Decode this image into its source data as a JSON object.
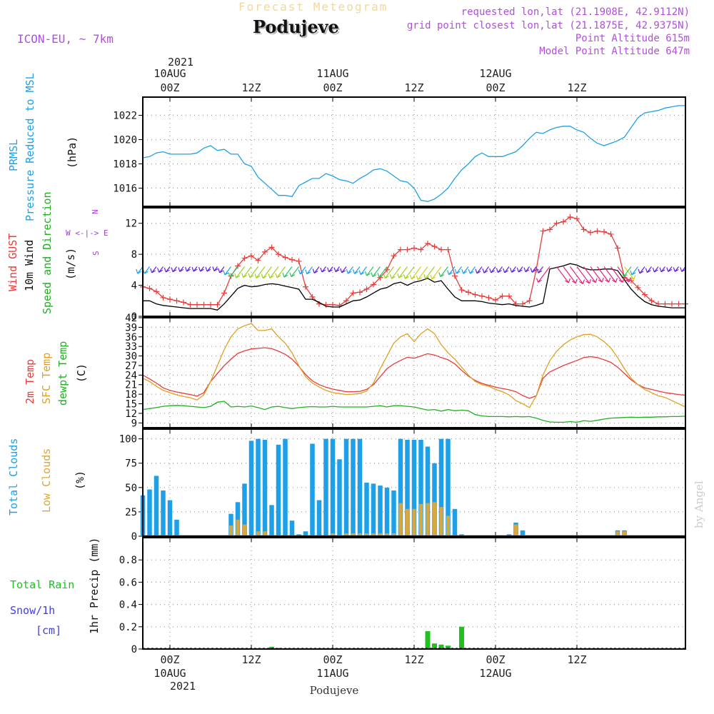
{
  "header": {
    "forecast_title": "Forecast Meteogram",
    "location": "Podujeve",
    "model": "ICON-EU, ~ 7km",
    "requested": "requested lon,lat (21.1908E, 42.9112N)",
    "gridpoint": "grid point closest lon,lat (21.1875E, 42.9375N)",
    "point_alt": "Point Altitude 615m",
    "model_alt": "Model Point Altitude 647m"
  },
  "axis_top": {
    "year": "2021",
    "labels": [
      "10AUG 00Z",
      "12Z",
      "11AUG 00Z",
      "12Z",
      "12AUG 00Z",
      "12Z"
    ]
  },
  "axis_bottom": {
    "labels": [
      "00Z",
      "12Z",
      "00Z",
      "12Z",
      "00Z",
      "12Z"
    ],
    "dates": [
      "10AUG",
      "11AUG",
      "12AUG"
    ],
    "year": "2021",
    "footer": "Podujeve"
  },
  "watermark": "by Angel",
  "colors": {
    "pressure": "#1ea0e8",
    "gust": "#e83c3c",
    "wind": "#000000",
    "temp2m": "#e83c3c",
    "sfc": "#e0a020",
    "dewpt": "#20b020",
    "clouds_total": "#1ea0e8",
    "clouds_low": "#d8a840",
    "rain": "#20c020",
    "purple": "#a040d0"
  },
  "panels": {
    "pressure": {
      "label1": "PRMSL",
      "label2": "Pressure Reduced to MSL",
      "unit": "(hPa)"
    },
    "wind": {
      "label_gust": "Wind GUST",
      "label_wind": "10m Wind",
      "label_dir": "Speed and Direction",
      "unit": "(m/s)",
      "compass_n": "N",
      "compass_s": "S",
      "compass_we": "W <-|-> E"
    },
    "temp": {
      "label_2m": "2m Temp",
      "label_sfc": "SFC Temp",
      "label_dew": "dewpt Temp",
      "unit": "(C)"
    },
    "clouds": {
      "label_total": "Total Clouds",
      "label_low": "Low Clouds",
      "unit": "(%)"
    },
    "precip": {
      "label_rain": "Total  Rain",
      "label_snow": "Snow/1h",
      "label_cm": "[cm]",
      "unit": "1hr Precip (mm)"
    }
  },
  "chart_data": [
    {
      "type": "line",
      "title": "PRMSL Pressure Reduced to MSL",
      "ylabel": "(hPa)",
      "xlabel": "",
      "x_hours_from_0000Z_10AUG": [
        -4,
        -3,
        -2,
        -1,
        0,
        1,
        2,
        3,
        4,
        5,
        6,
        7,
        8,
        9,
        10,
        11,
        12,
        13,
        14,
        15,
        16,
        17,
        18,
        19,
        20,
        21,
        22,
        23,
        24,
        25,
        26,
        27,
        28,
        29,
        30,
        31,
        32,
        33,
        34,
        35,
        36,
        37,
        38,
        39,
        40,
        41,
        42,
        43,
        44,
        45,
        46,
        47,
        48,
        49,
        50,
        51,
        52,
        53,
        54,
        55,
        56,
        57,
        58,
        59,
        60,
        61,
        62,
        63,
        64,
        65,
        66,
        67,
        68,
        69,
        70,
        71,
        72,
        73,
        74,
        75,
        76
      ],
      "series": [
        {
          "name": "PRMSL",
          "values": [
            1018.5,
            1018.6,
            1018.9,
            1019.0,
            1018.8,
            1018.8,
            1018.8,
            1018.8,
            1018.9,
            1019.3,
            1019.5,
            1019.1,
            1019.2,
            1018.8,
            1018.8,
            1018.0,
            1017.8,
            1016.9,
            1016.4,
            1015.9,
            1015.4,
            1015.4,
            1015.3,
            1016.2,
            1016.5,
            1016.8,
            1016.8,
            1017.2,
            1017.0,
            1016.7,
            1016.6,
            1016.4,
            1016.8,
            1017.1,
            1017.5,
            1017.6,
            1017.4,
            1017.0,
            1016.6,
            1016.5,
            1016.0,
            1015.0,
            1014.9,
            1015.1,
            1015.5,
            1016.0,
            1016.8,
            1017.5,
            1018.0,
            1018.6,
            1018.9,
            1018.6,
            1018.6,
            1018.6,
            1018.8,
            1019.0,
            1019.5,
            1020.1,
            1020.6,
            1020.5,
            1020.8,
            1021.0,
            1021.1,
            1021.1,
            1020.8,
            1020.6,
            1020.1,
            1019.7,
            1019.5,
            1019.7,
            1019.9,
            1020.2,
            1021.0,
            1021.8,
            1022.2,
            1022.3,
            1022.4,
            1022.6,
            1022.7,
            1022.8,
            1022.8
          ]
        }
      ],
      "ylim": [
        1014.5,
        1023.5
      ],
      "yticks": [
        1016,
        1018,
        1020,
        1022
      ]
    },
    {
      "type": "line",
      "title": "Wind GUST / 10m Wind Speed and Direction",
      "ylabel": "(m/s)",
      "x_hours_from_0000Z_10AUG": [
        -4,
        -3,
        -2,
        -1,
        0,
        1,
        2,
        3,
        4,
        5,
        6,
        7,
        8,
        9,
        10,
        11,
        12,
        13,
        14,
        15,
        16,
        17,
        18,
        19,
        20,
        21,
        22,
        23,
        24,
        25,
        26,
        27,
        28,
        29,
        30,
        31,
        32,
        33,
        34,
        35,
        36,
        37,
        38,
        39,
        40,
        41,
        42,
        43,
        44,
        45,
        46,
        47,
        48,
        49,
        50,
        51,
        52,
        53,
        54,
        55,
        56,
        57,
        58,
        59,
        60,
        61,
        62,
        63,
        64,
        65,
        66,
        67,
        68,
        69,
        70,
        71,
        72,
        73,
        74,
        75,
        76
      ],
      "series": [
        {
          "name": "Wind GUST",
          "values": [
            3.8,
            3.6,
            3.2,
            2.4,
            2.2,
            2.0,
            1.8,
            1.5,
            1.5,
            1.5,
            1.5,
            1.5,
            3.0,
            5.2,
            6.5,
            7.5,
            7.8,
            7.2,
            8.3,
            8.9,
            8.0,
            7.6,
            7.3,
            7.1,
            3.8,
            2.5,
            1.6,
            1.5,
            1.5,
            1.4,
            2.0,
            3.0,
            3.1,
            3.5,
            4.1,
            5.0,
            6.0,
            7.8,
            8.6,
            8.6,
            8.8,
            8.6,
            9.4,
            9.0,
            8.6,
            8.6,
            5.2,
            3.4,
            3.1,
            2.8,
            2.6,
            2.4,
            2.1,
            2.6,
            2.6,
            1.6,
            1.6,
            2.0,
            6.0,
            11.0,
            11.2,
            12.0,
            12.2,
            12.8,
            12.6,
            11.2,
            10.8,
            11.0,
            10.9,
            10.6,
            8.8,
            5.0,
            4.6,
            3.7,
            2.8,
            2.0,
            1.6,
            1.6,
            1.6,
            1.6,
            1.6
          ]
        },
        {
          "name": "10m Wind",
          "values": [
            2.0,
            2.0,
            1.6,
            1.4,
            1.3,
            1.2,
            1.1,
            1.0,
            1.0,
            1.0,
            1.0,
            0.8,
            1.6,
            2.6,
            3.6,
            4.0,
            3.8,
            3.9,
            4.1,
            4.2,
            4.1,
            3.9,
            3.7,
            3.5,
            2.2,
            2.2,
            1.8,
            1.3,
            1.2,
            1.2,
            1.6,
            2.0,
            2.1,
            2.5,
            3.0,
            3.5,
            3.7,
            4.2,
            4.4,
            4.0,
            4.4,
            4.6,
            4.9,
            4.4,
            4.6,
            3.5,
            2.5,
            2.0,
            2.0,
            2.0,
            1.9,
            1.7,
            1.6,
            1.5,
            1.6,
            1.4,
            1.3,
            1.2,
            1.4,
            1.7,
            6.1,
            6.3,
            6.5,
            6.8,
            6.6,
            6.2,
            6.0,
            6.0,
            6.1,
            6.1,
            5.9,
            4.7,
            3.5,
            2.6,
            1.9,
            1.5,
            1.3,
            1.2,
            1.1,
            1.1,
            1.1
          ]
        }
      ],
      "ylim": [
        0,
        14
      ],
      "yticks": [
        0,
        4,
        8,
        12
      ]
    },
    {
      "type": "line",
      "title": "2m Temp / SFC Temp / dewpt Temp",
      "ylabel": "(C)",
      "x_hours_from_0000Z_10AUG": [
        -4,
        -3,
        -2,
        -1,
        0,
        1,
        2,
        3,
        4,
        5,
        6,
        7,
        8,
        9,
        10,
        11,
        12,
        13,
        14,
        15,
        16,
        17,
        18,
        19,
        20,
        21,
        22,
        23,
        24,
        25,
        26,
        27,
        28,
        29,
        30,
        31,
        32,
        33,
        34,
        35,
        36,
        37,
        38,
        39,
        40,
        41,
        42,
        43,
        44,
        45,
        46,
        47,
        48,
        49,
        50,
        51,
        52,
        53,
        54,
        55,
        56,
        57,
        58,
        59,
        60,
        61,
        62,
        63,
        64,
        65,
        66,
        67,
        68,
        69,
        70,
        71,
        72,
        73,
        74,
        75,
        76
      ],
      "series": [
        {
          "name": "2m Temp",
          "values": [
            24.0,
            22.8,
            21.5,
            20.0,
            19.2,
            18.7,
            18.3,
            17.9,
            17.4,
            18.5,
            22.0,
            24.5,
            27.0,
            29.0,
            30.8,
            31.6,
            32.2,
            32.4,
            32.6,
            32.3,
            31.5,
            30.5,
            29.0,
            26.8,
            24.2,
            22.2,
            21.0,
            20.2,
            19.6,
            19.2,
            18.8,
            18.8,
            18.9,
            19.5,
            21.0,
            23.5,
            26.0,
            27.5,
            28.6,
            29.6,
            29.3,
            30.0,
            30.7,
            30.3,
            29.5,
            28.8,
            27.5,
            25.5,
            23.7,
            22.3,
            21.4,
            20.8,
            20.2,
            19.8,
            19.4,
            18.8,
            17.6,
            16.7,
            17.5,
            23.0,
            25.0,
            26.0,
            27.0,
            27.8,
            28.6,
            29.5,
            29.8,
            29.5,
            28.8,
            28.0,
            26.5,
            24.5,
            22.5,
            21.0,
            20.0,
            19.5,
            19.0,
            18.5,
            18.2,
            17.9,
            17.7
          ]
        },
        {
          "name": "SFC Temp",
          "values": [
            23.0,
            22.0,
            20.5,
            19.2,
            18.5,
            17.8,
            17.3,
            16.9,
            16.2,
            17.8,
            22.0,
            27.0,
            32.0,
            36.0,
            38.5,
            39.5,
            40.2,
            38.0,
            38.0,
            38.5,
            36.0,
            34.0,
            31.0,
            27.0,
            23.5,
            21.5,
            20.3,
            19.2,
            18.5,
            18.2,
            17.9,
            18.0,
            18.2,
            19.0,
            21.5,
            26.0,
            30.0,
            34.0,
            36.0,
            37.0,
            34.5,
            37.0,
            38.5,
            37.0,
            33.5,
            31.0,
            29.0,
            26.5,
            24.0,
            22.0,
            21.0,
            20.5,
            19.5,
            18.8,
            17.8,
            16.0,
            15.0,
            13.8,
            17.5,
            24.0,
            28.5,
            31.5,
            33.5,
            35.0,
            36.0,
            36.7,
            36.8,
            36.0,
            34.5,
            32.5,
            29.5,
            26.0,
            23.0,
            21.0,
            19.5,
            18.5,
            17.5,
            17.0,
            16.0,
            15.0,
            14.0
          ]
        },
        {
          "name": "dewpt Temp",
          "values": [
            13.2,
            13.5,
            13.8,
            14.2,
            14.4,
            14.5,
            14.4,
            14.2,
            14.0,
            13.8,
            14.2,
            15.5,
            15.8,
            14.0,
            14.2,
            14.0,
            14.3,
            13.8,
            13.2,
            14.0,
            14.2,
            13.8,
            13.5,
            13.8,
            14.0,
            14.1,
            14.0,
            14.0,
            14.2,
            14.0,
            14.0,
            14.0,
            14.0,
            14.0,
            14.2,
            14.4,
            14.0,
            14.4,
            14.4,
            14.2,
            14.0,
            13.5,
            13.0,
            13.2,
            12.7,
            13.2,
            12.8,
            13.0,
            12.8,
            11.6,
            11.2,
            11.0,
            11.0,
            11.0,
            10.9,
            11.0,
            10.9,
            11.0,
            10.5,
            9.8,
            9.3,
            9.2,
            9.2,
            9.4,
            9.2,
            9.7,
            9.5,
            9.8,
            10.2,
            10.5,
            10.6,
            10.7,
            10.8,
            10.7,
            10.8,
            10.8,
            10.9,
            10.9,
            11.0,
            11.0,
            11.1
          ]
        }
      ],
      "ylim": [
        7.5,
        42
      ],
      "yticks": [
        9,
        12,
        15,
        18,
        21,
        24,
        27,
        30,
        33,
        36,
        39,
        42
      ]
    },
    {
      "type": "bar",
      "title": "Total Clouds / Low Clouds",
      "ylabel": "(%)",
      "x_hours_from_0000Z_10AUG": [
        -4,
        -3,
        -2,
        -1,
        0,
        1,
        2,
        3,
        4,
        5,
        6,
        7,
        8,
        9,
        10,
        11,
        12,
        13,
        14,
        15,
        16,
        17,
        18,
        19,
        20,
        21,
        22,
        23,
        24,
        25,
        26,
        27,
        28,
        29,
        30,
        31,
        32,
        33,
        34,
        35,
        36,
        37,
        38,
        39,
        40,
        41,
        42,
        43,
        44,
        45,
        46,
        47,
        48,
        49,
        50,
        51,
        52,
        53,
        54,
        55,
        56,
        57,
        58,
        59,
        60,
        61,
        62,
        63,
        64,
        65,
        66,
        67,
        68,
        69,
        70,
        71,
        72,
        73,
        74,
        75,
        76
      ],
      "series": [
        {
          "name": "Total Clouds",
          "values": [
            42,
            48,
            62,
            47,
            37,
            17,
            0,
            0,
            0,
            0,
            0,
            0,
            0,
            23,
            35,
            54,
            98,
            100,
            99,
            32,
            94,
            100,
            16,
            2,
            5,
            95,
            37,
            100,
            100,
            79,
            100,
            100,
            100,
            55,
            54,
            52,
            50,
            47,
            100,
            99,
            99,
            99,
            92,
            75,
            100,
            100,
            28,
            2,
            0,
            0,
            0,
            0,
            0,
            1,
            2,
            14,
            6,
            0,
            0,
            0,
            0,
            0,
            0,
            0,
            0,
            0,
            0,
            0,
            0,
            0,
            6,
            6,
            0,
            0,
            0,
            0,
            0,
            0,
            0,
            0,
            0
          ]
        },
        {
          "name": "Low Clouds",
          "values": [
            0,
            0,
            0,
            0,
            0,
            0,
            0,
            0,
            0,
            0,
            0,
            0,
            0,
            11,
            17,
            12,
            0,
            5,
            5,
            0,
            0,
            0,
            0,
            0,
            0,
            0,
            0,
            0,
            3,
            0,
            3,
            3,
            3,
            3,
            3,
            3,
            3,
            3,
            34,
            28,
            28,
            33,
            34,
            35,
            30,
            21,
            0,
            0,
            0,
            0,
            0,
            0,
            0,
            0,
            0,
            12,
            0,
            0,
            0,
            0,
            0,
            0,
            0,
            0,
            0,
            0,
            0,
            0,
            0,
            0,
            5,
            5,
            0,
            0,
            0,
            0,
            0,
            0,
            0,
            0,
            0
          ]
        }
      ],
      "ylim": [
        0,
        110
      ],
      "yticks": [
        0,
        25,
        50,
        75,
        100
      ]
    },
    {
      "type": "bar",
      "title": "1hr Precip",
      "ylabel": "1hr Precip (mm)",
      "x_hours_from_0000Z_10AUG": [
        15,
        16,
        38,
        39,
        40,
        41,
        42,
        43
      ],
      "series": [
        {
          "name": "Total Rain",
          "values": [
            0.02,
            0.01,
            0.16,
            0.05,
            0.04,
            0.03,
            0.0,
            0.2
          ]
        }
      ],
      "ylim": [
        0,
        1.0
      ],
      "yticks": [
        0,
        0.2,
        0.4,
        0.6,
        0.8
      ]
    }
  ]
}
